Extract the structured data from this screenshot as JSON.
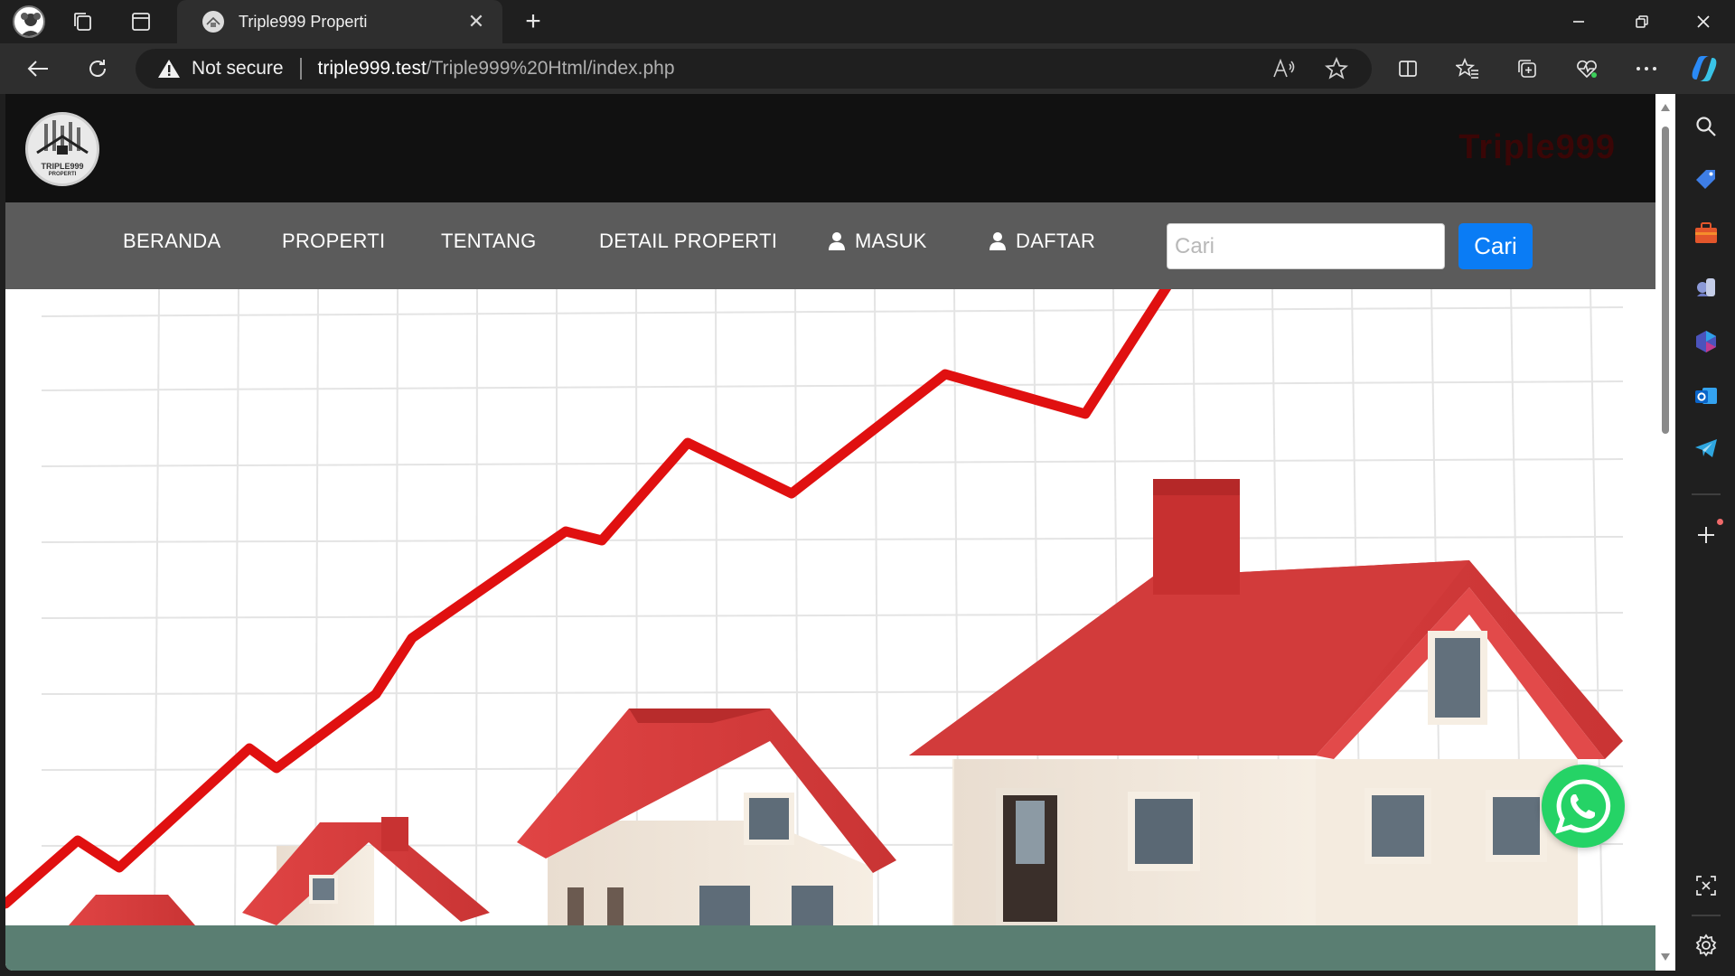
{
  "browser": {
    "tab": {
      "title": "Triple999 Properti",
      "close_glyph": "✕"
    },
    "new_tab_glyph": "+",
    "address": {
      "security_label": "Not secure",
      "url_host": "triple999.test",
      "url_path": "/Triple999%20Html/index.php"
    },
    "icons": {
      "profile": "profile-avatar",
      "workspaces": "workspaces-icon",
      "tab_actions": "tab-actions-icon",
      "back": "back-arrow-icon",
      "refresh": "refresh-icon",
      "warning": "warning-triangle-icon",
      "read_aloud": "read-aloud-icon",
      "favorite": "star-icon",
      "split_screen": "split-screen-icon",
      "favorites": "favorites-icon",
      "collections": "collections-icon",
      "browser_essentials": "heart-pulse-icon",
      "more": "more-icon",
      "copilot": "copilot-icon"
    },
    "sidebar": [
      "search-icon",
      "shopping-tag-icon",
      "tools-briefcase-icon",
      "games-icon",
      "microsoft-365-icon",
      "outlook-icon",
      "telegram-icon",
      "add-icon",
      "screenshot-icon",
      "settings-icon"
    ]
  },
  "site": {
    "brand": "Triple999",
    "logo_text": "TRIPLE999",
    "logo_sub": "PROPERTI",
    "nav": {
      "home": "BERANDA",
      "properties": "PROPERTI",
      "about": "TENTANG",
      "property_detail": "DETAIL PROPERTI",
      "login": "MASUK",
      "register": "DAFTAR"
    },
    "search": {
      "placeholder": "Cari",
      "button": "Cari"
    },
    "colors": {
      "header_bg": "#111111",
      "nav_bg": "#5b5b5b",
      "search_button": "#0a7cf5",
      "footer_band": "#5a7e72",
      "whatsapp": "#25d366",
      "roof_red": "#d63a3a",
      "trend_line": "#e01010"
    },
    "hero_image": "rising-property-price-chart-with-houses",
    "whatsapp_icon": "whatsapp-icon"
  }
}
